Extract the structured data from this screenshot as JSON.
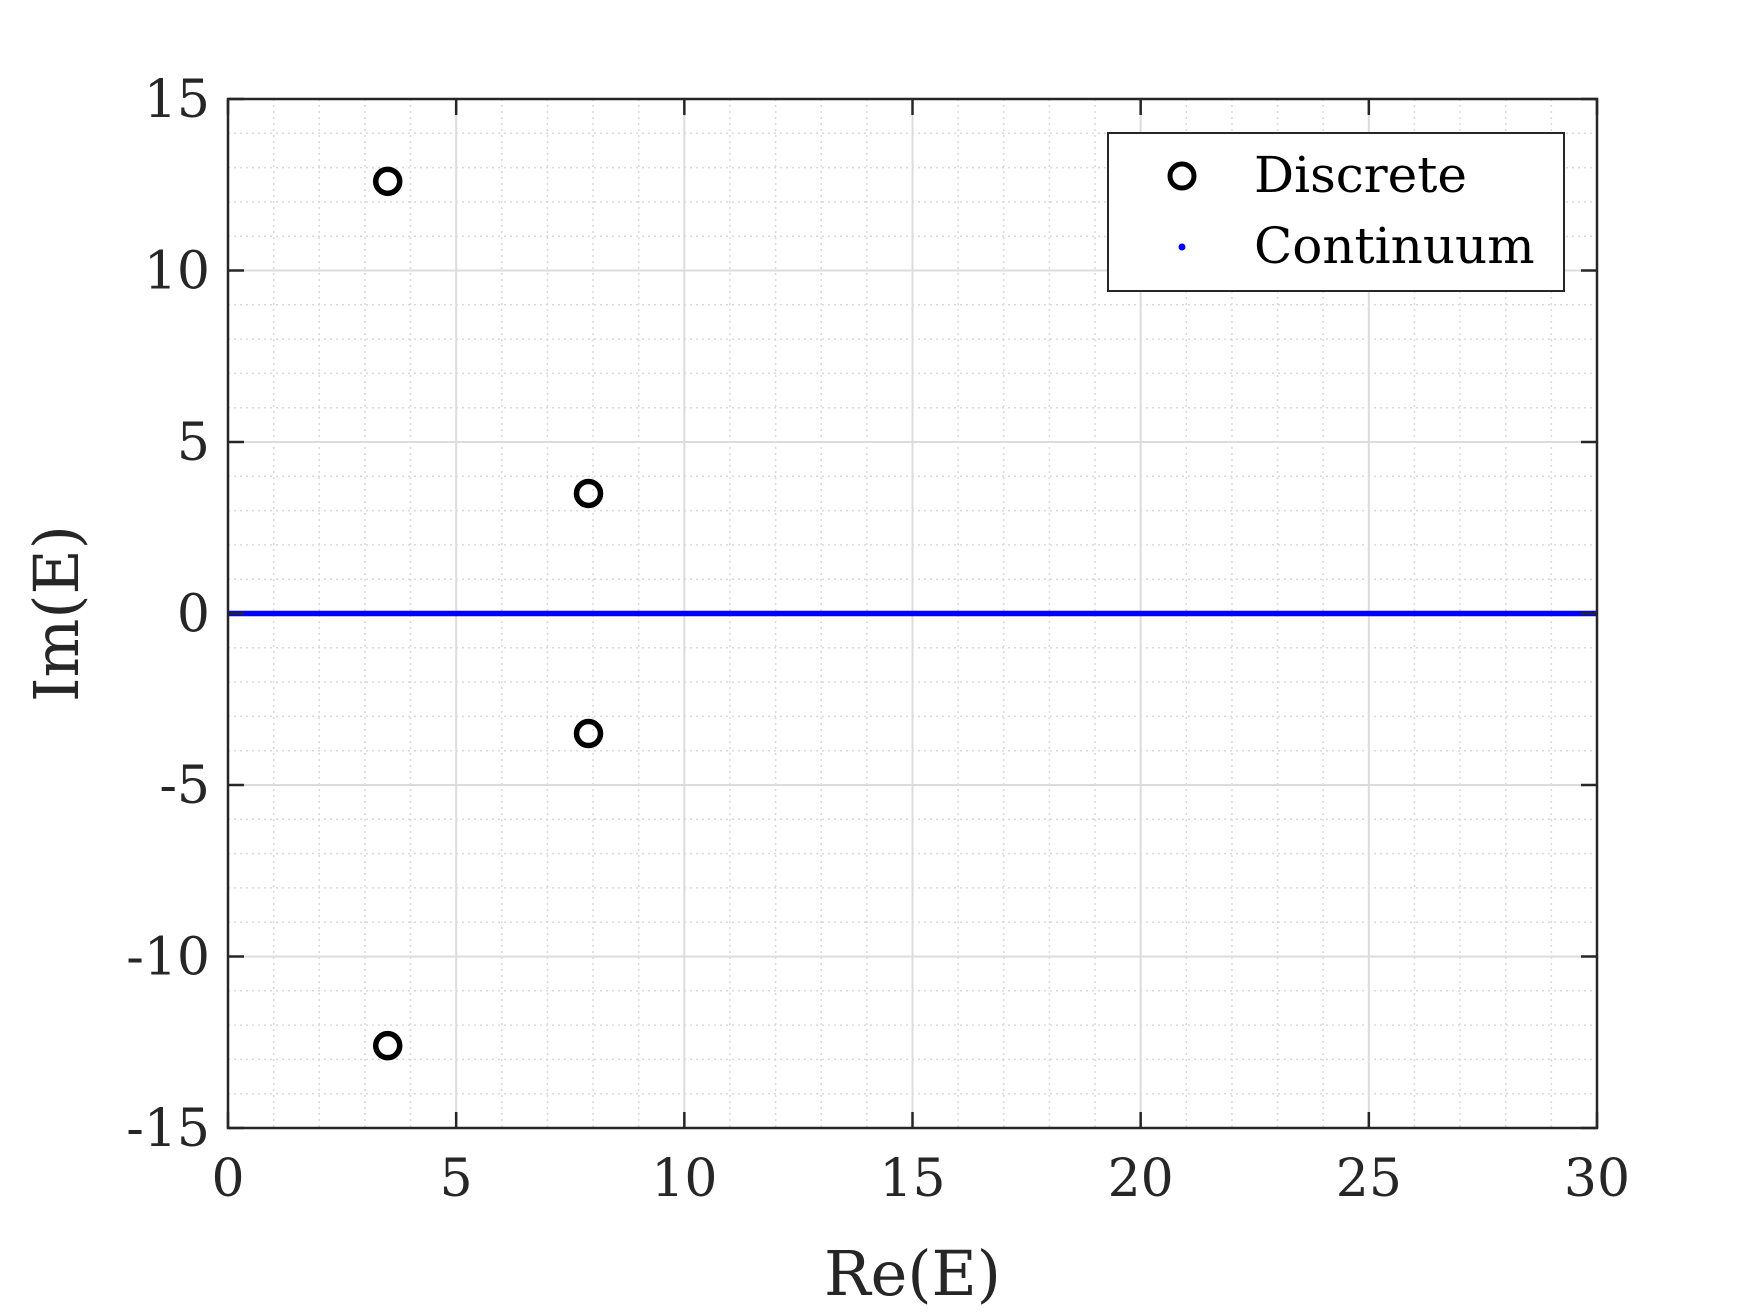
{
  "chart_data": {
    "type": "scatter",
    "xlabel": "Re(E)",
    "ylabel": "Im(E)",
    "xlim": [
      0,
      30
    ],
    "ylim": [
      -15,
      15
    ],
    "x_ticks": [
      0,
      5,
      10,
      15,
      20,
      25,
      30
    ],
    "y_ticks": [
      -15,
      -10,
      -5,
      0,
      5,
      10,
      15
    ],
    "x_tick_labels": [
      "0",
      "5",
      "10",
      "15",
      "20",
      "25",
      "30"
    ],
    "y_tick_labels": [
      "-15",
      "-10",
      "-5",
      "0",
      "5",
      "10",
      "15"
    ],
    "grid": "major and minor",
    "legend_position": "top-right",
    "series": [
      {
        "name": "Discrete",
        "marker": "open-circle",
        "color": "#000000",
        "points": [
          {
            "x": 3.5,
            "y": 12.6
          },
          {
            "x": 7.9,
            "y": 3.5
          },
          {
            "x": 7.9,
            "y": -3.5
          },
          {
            "x": 3.5,
            "y": -12.6
          }
        ]
      },
      {
        "name": "Continuum",
        "marker": "dot",
        "color": "#0000ff",
        "x_range": [
          0,
          30
        ],
        "y": 0
      }
    ]
  }
}
